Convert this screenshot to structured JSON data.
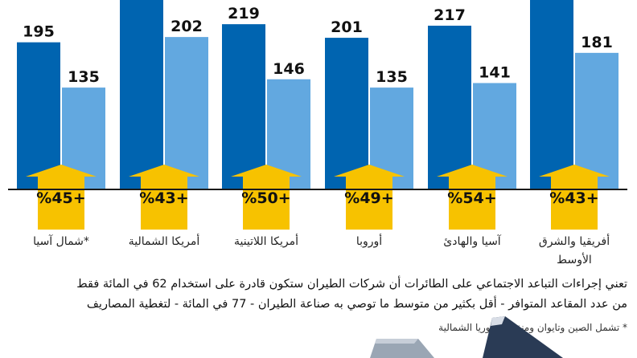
{
  "chart_data": {
    "type": "bar",
    "categories": [
      "أفريقيا والشرق الأوسط",
      "آسيا والهادئ",
      "أوروبا",
      "أمريكا اللاتينية",
      "أمريكا الشمالية",
      "شمال آسيا*"
    ],
    "series": [
      {
        "values": [
          null,
          217,
          201,
          219,
          null,
          195
        ]
      },
      {
        "values": [
          181,
          141,
          135,
          146,
          202,
          135
        ]
      }
    ],
    "increase_labels": [
      "%43+",
      "%54+",
      "%49+",
      "%50+",
      "%43+",
      "%45+"
    ],
    "colors": {
      "series1": "#0064b0",
      "series2": "#62a8e0",
      "arrow": "#f7c200",
      "baseline": "#1a1a1a"
    },
    "order": "right-to-left"
  },
  "caption": {
    "line1": "تعني إجراءات التباعد الاجتماعي على الطائرات أن شركات الطيران ستكون قادرة على استخدام 62 في المائة فقط",
    "line2": "من عدد المقاعد المتوافر - أقل بكثير من متوسط ما توصي به صناعة الطيران - 77 في المائة - لتغطية المصاريف",
    "footnote": "* تشمل الصين وتايوان ومنغوليا وكوريا الشمالية"
  }
}
